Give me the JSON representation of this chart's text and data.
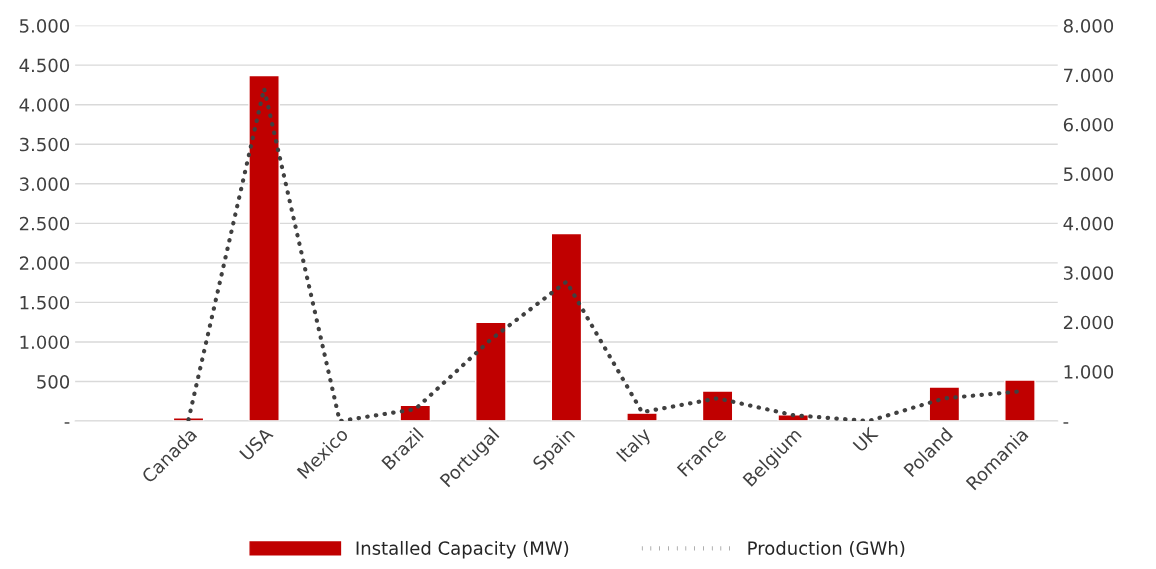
{
  "chart_data": {
    "type": "bar",
    "categories": [
      null,
      "Canada",
      "USA",
      "Mexico",
      "Brazil",
      "Portugal",
      "Spain",
      "Italy",
      "France",
      "Belgium",
      "UK",
      "Poland",
      "Romania"
    ],
    "series": [
      {
        "name": "Installed Capacity (MW)",
        "color": "#c00000",
        "values": [
          null,
          40,
          4370,
          null,
          200,
          1250,
          2370,
          100,
          380,
          80,
          null,
          430,
          520
        ]
      },
      {
        "name": "Production (GWh)",
        "type": "line",
        "axis": "y2",
        "color": "#404040",
        "line_style": "dotted",
        "values": [
          null,
          30,
          6730,
          0,
          240,
          1650,
          2820,
          180,
          460,
          120,
          0,
          460,
          600
        ]
      }
    ],
    "ylim": [
      0,
      5000
    ],
    "yticks": [
      {
        "value": 0,
        "label": "-"
      },
      500,
      {
        "value": 1000,
        "label": "1.000"
      },
      {
        "value": 1500,
        "label": "1.500"
      },
      {
        "value": 2000,
        "label": "2.000"
      },
      {
        "value": 2500,
        "label": "2.500"
      },
      {
        "value": 3000,
        "label": "3.000"
      },
      {
        "value": 3500,
        "label": "3.500"
      },
      {
        "value": 4000,
        "label": "4.000"
      },
      {
        "value": 4500,
        "label": "4.500"
      },
      {
        "value": 5000,
        "label": "5.000"
      }
    ],
    "y2lim": [
      0,
      8000
    ],
    "y2ticks": [
      {
        "value": 0,
        "label": "-"
      },
      {
        "value": 1000,
        "label": "1.000"
      },
      {
        "value": 2000,
        "label": "2.000"
      },
      {
        "value": 3000,
        "label": "3.000"
      },
      {
        "value": 4000,
        "label": "4.000"
      },
      {
        "value": 5000,
        "label": "5.000"
      },
      {
        "value": 6000,
        "label": "6.000"
      },
      {
        "value": 7000,
        "label": "7.000"
      },
      {
        "value": 8000,
        "label": "8.000"
      }
    ],
    "grid": "y",
    "legend": "bottom"
  }
}
